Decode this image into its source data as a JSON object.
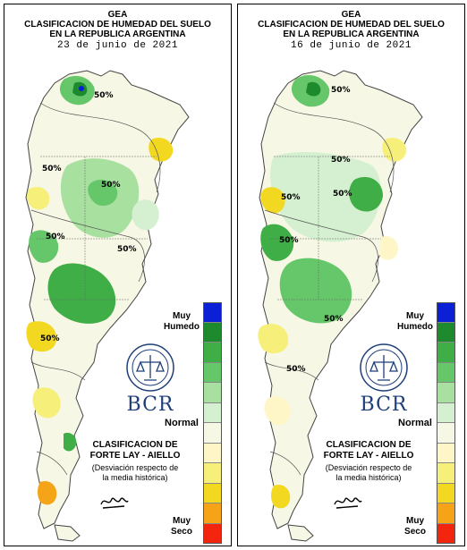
{
  "panels": [
    {
      "id": "left",
      "header": {
        "org": "GEA",
        "title_line1": "CLASIFICACION DE HUMEDAD DEL SUELO",
        "title_line2": "EN LA REPUBLICA ARGENTINA",
        "date": "23 de junio de 2021"
      },
      "contour_labels": [
        "50%",
        "50%",
        "50%",
        "50%",
        "50%",
        "50%"
      ],
      "legend": {
        "top_label": "Muy\nHumedo",
        "middle_label": "Normal",
        "bottom_label": "Muy\nSeco"
      },
      "classification_title": "CLASIFICACION DE\nFORTE LAY - AIELLO",
      "classification_note": "(Desviación respecto de\nla media histórica)",
      "logo_text": "BCR"
    },
    {
      "id": "right",
      "header": {
        "org": "GEA",
        "title_line1": "CLASIFICACION DE HUMEDAD DEL SUELO",
        "title_line2": "EN LA REPUBLICA ARGENTINA",
        "date": "16 de junio de 2021"
      },
      "contour_labels": [
        "50%",
        "50%",
        "50%",
        "50%",
        "50%",
        "50%",
        "50%"
      ],
      "legend": {
        "top_label": "Muy\nHumedo",
        "middle_label": "Normal",
        "bottom_label": "Muy\nSeco"
      },
      "classification_title": "CLASIFICACION DE\nFORTE LAY - AIELLO",
      "classification_note": "(Desviación respecto de\nla media histórica)",
      "logo_text": "BCR"
    }
  ],
  "legend_colors": [
    "#0b1fd6",
    "#1e8a2e",
    "#3fae46",
    "#66c76a",
    "#a8e0a0",
    "#d4f0d0",
    "#f6f7e4",
    "#fff6c8",
    "#f6f07a",
    "#f2d820",
    "#f5a418",
    "#f4250f"
  ]
}
